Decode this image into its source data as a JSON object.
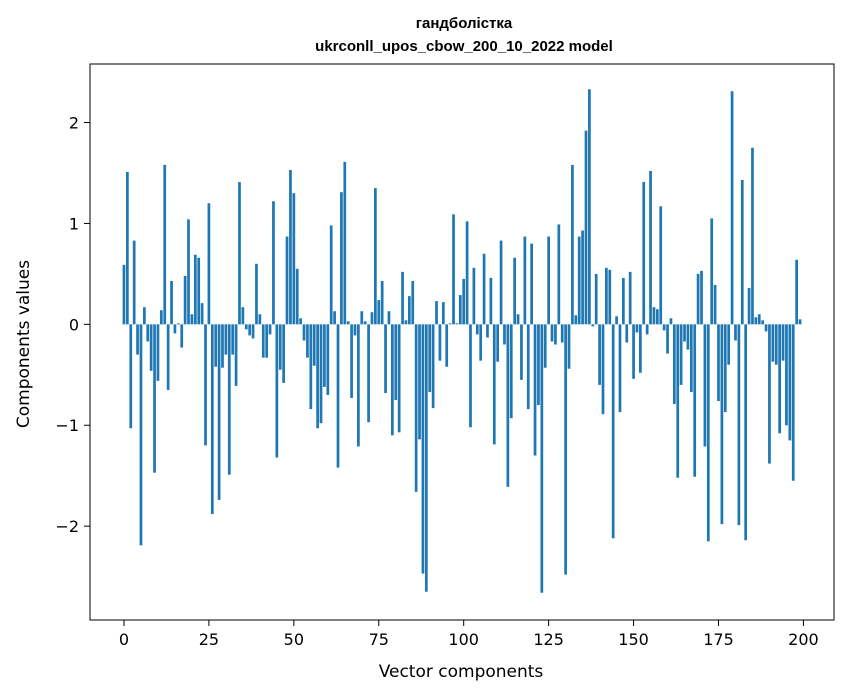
{
  "chart_data": {
    "type": "bar",
    "title": "гандболістка",
    "subtitle": "ukrconll_upos_cbow_200_10_2022 model",
    "xlabel": "Vector components",
    "ylabel": "Components values",
    "xlim": [
      -10,
      209
    ],
    "ylim": [
      -2.93,
      2.58
    ],
    "xticks": [
      0,
      25,
      50,
      75,
      100,
      125,
      150,
      175,
      200
    ],
    "yticks": [
      -2,
      -1,
      0,
      1,
      2
    ],
    "ytick_labels": [
      "−2",
      "−1",
      "0",
      "1",
      "2"
    ],
    "bar_color": "#1f77b4",
    "grid": false,
    "values": [
      0.59,
      1.51,
      -1.03,
      0.83,
      -0.3,
      -2.19,
      0.17,
      -0.17,
      -0.46,
      -1.47,
      -0.56,
      0.14,
      1.58,
      -0.65,
      0.43,
      -0.09,
      0.01,
      -0.23,
      0.48,
      1.04,
      0.1,
      0.69,
      0.66,
      0.21,
      -1.2,
      1.2,
      -1.88,
      -0.42,
      -1.74,
      -0.43,
      -0.3,
      -1.49,
      -0.3,
      -0.61,
      1.41,
      0.17,
      -0.05,
      -0.11,
      -0.14,
      0.6,
      0.1,
      -0.33,
      -0.33,
      -0.1,
      1.22,
      -1.32,
      -0.45,
      -0.58,
      0.87,
      1.53,
      1.3,
      0.55,
      0.06,
      -0.16,
      -0.33,
      -0.84,
      -0.41,
      -1.03,
      -0.98,
      -0.62,
      -0.7,
      0.98,
      0.13,
      -1.42,
      1.31,
      1.61,
      0.03,
      -0.73,
      -0.11,
      -1.21,
      0.13,
      0.03,
      -0.97,
      0.12,
      1.35,
      0.24,
      0.43,
      -0.68,
      0.13,
      -1.1,
      -0.75,
      -1.07,
      0.52,
      0.04,
      0.28,
      0.43,
      -1.66,
      -1.14,
      -2.47,
      -2.65,
      -0.67,
      -0.83,
      0.23,
      -0.36,
      0.22,
      -0.42,
      0.01,
      1.09,
      0.01,
      0.29,
      0.45,
      1.02,
      -1.02,
      0.56,
      -0.1,
      -0.36,
      0.7,
      -0.13,
      0.46,
      -1.19,
      -0.37,
      0.83,
      -0.2,
      -1.61,
      -0.93,
      0.66,
      0.1,
      -0.55,
      0.87,
      -0.84,
      0.8,
      -1.3,
      -0.8,
      -2.66,
      -0.43,
      0.87,
      -0.17,
      -0.2,
      0.99,
      -0.18,
      -2.48,
      -0.44,
      1.58,
      0.09,
      0.87,
      0.93,
      1.92,
      2.33,
      -0.02,
      0.5,
      -0.6,
      -0.89,
      0.56,
      0.54,
      -2.12,
      0.08,
      -0.87,
      0.46,
      -0.18,
      0.52,
      -0.54,
      -0.08,
      -0.48,
      1.41,
      -0.1,
      1.52,
      0.17,
      0.15,
      1.17,
      -0.06,
      -0.29,
      0.06,
      -0.79,
      -1.52,
      -0.6,
      -0.17,
      -0.25,
      -0.67,
      -1.51,
      0.5,
      0.53,
      -1.21,
      -2.15,
      1.05,
      0.39,
      -0.76,
      -1.98,
      -0.87,
      -0.4,
      2.31,
      -0.16,
      -1.99,
      1.43,
      -2.14,
      0.36,
      1.75,
      0.07,
      0.1,
      0.04,
      -0.07,
      -1.38,
      -0.37,
      -0.4,
      -1.08,
      -0.36,
      -1.0,
      -1.15,
      -1.55,
      0.64,
      0.05
    ]
  }
}
